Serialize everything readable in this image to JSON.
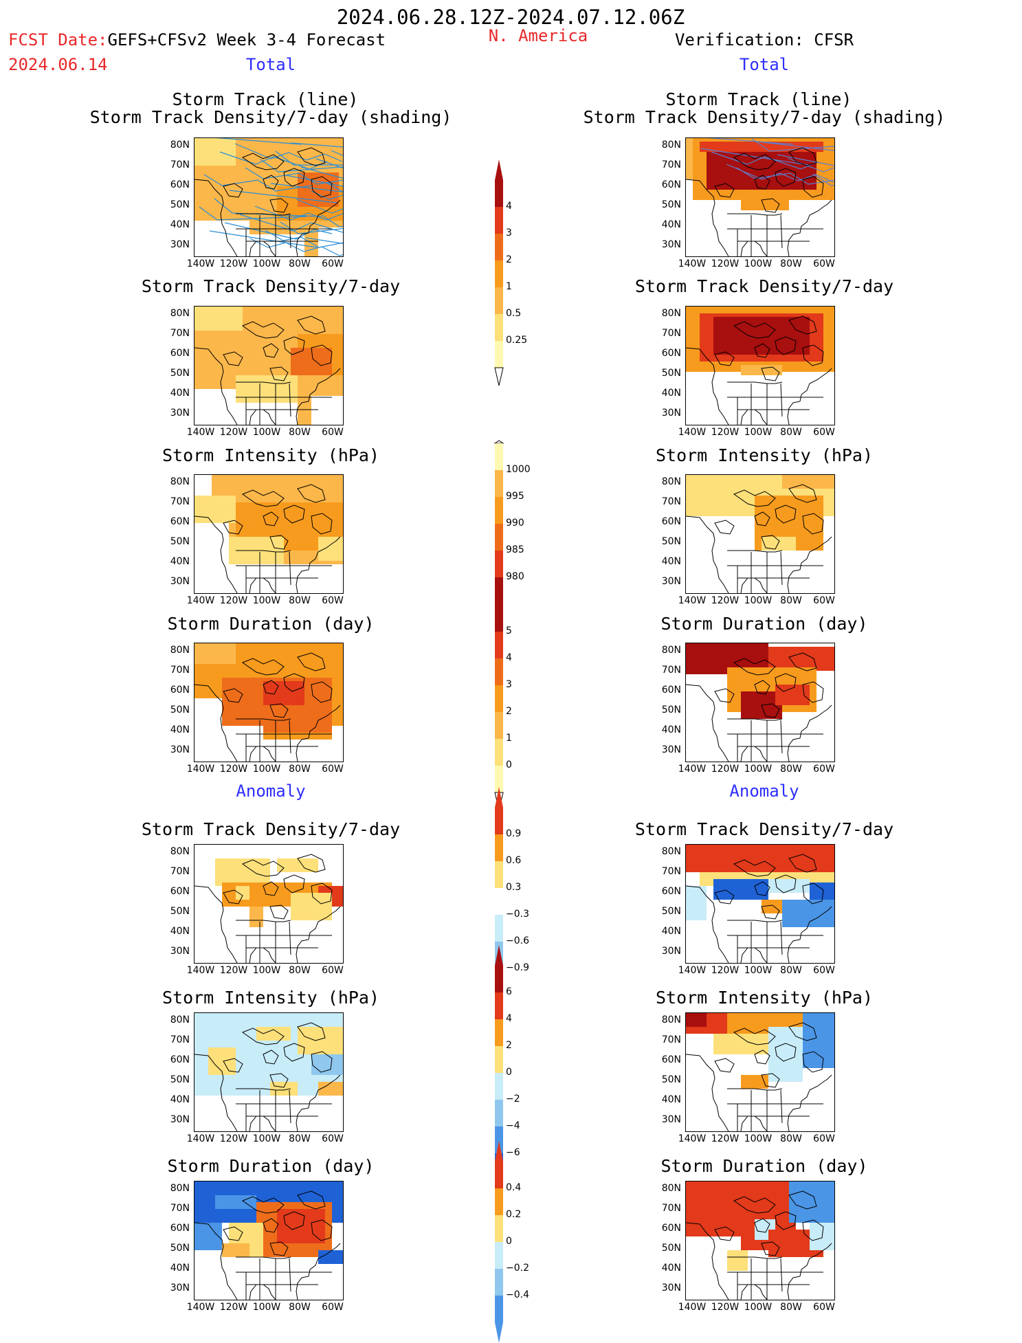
{
  "header": {
    "period": "2024.06.28.12Z-2024.07.12.06Z",
    "fcst_date_label": "FCST Date:",
    "fcst_model": "GEFS+CFSv2 Week 3-4 Forecast",
    "fcst_date": "2024.06.14",
    "region": "N. America",
    "verification": "Verification: CFSR",
    "total_left": "Total",
    "total_right": "Total",
    "anomaly_left": "Anomaly",
    "anomaly_right": "Anomaly"
  },
  "panel_titles": {
    "track_line": "Storm Track (line)",
    "track_shading": "Storm Track Density/7-day (shading)",
    "density": "Storm Track Density/7-day",
    "intensity": "Storm Intensity (hPa)",
    "duration": "Storm Duration (day)"
  },
  "axes": {
    "lat_labels": [
      "80N",
      "70N",
      "60N",
      "50N",
      "40N",
      "30N"
    ],
    "lon_labels": [
      "140W",
      "120W",
      "100W",
      "80W",
      "60W"
    ]
  },
  "colorbars": {
    "density_total": [
      "4",
      "3",
      "2",
      "1",
      "0.5",
      "0.25"
    ],
    "intensity_total": [
      "1000",
      "995",
      "990",
      "985",
      "980"
    ],
    "duration_total": [
      "5",
      "4",
      "3",
      "2",
      "1",
      "0"
    ],
    "density_anom": [
      "0.9",
      "0.6",
      "0.3",
      "−0.3",
      "−0.6",
      "−0.9"
    ],
    "intensity_anom": [
      "6",
      "4",
      "2",
      "0",
      "−2",
      "−4",
      "−6"
    ],
    "duration_anom": [
      "0.4",
      "0.2",
      "0",
      "−0.2",
      "−0.4"
    ]
  },
  "colors": {
    "yellow_light": "#fff8b0",
    "yellow": "#fde07a",
    "orange_light": "#fbb74a",
    "orange": "#f79b1e",
    "orange_dark": "#ee6d1b",
    "red": "#e23a1a",
    "dark_red": "#a80f0f",
    "blue_light": "#c8ecf8",
    "blue_mid": "#8fc7ee",
    "blue": "#4b95e6",
    "blue_dark": "#1f62d6",
    "track_line": "#2a8fd6"
  }
}
